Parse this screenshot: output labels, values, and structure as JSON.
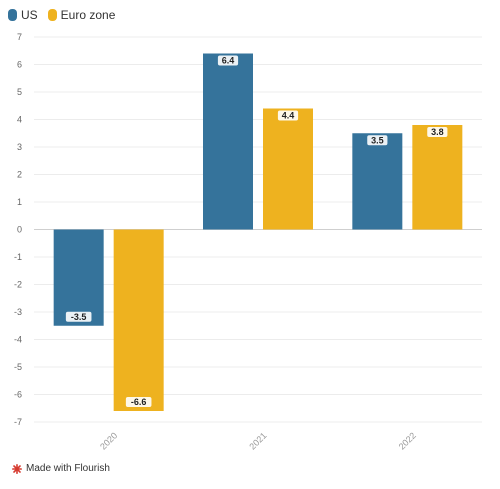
{
  "legend": [
    {
      "name": "US",
      "color": "#35739b"
    },
    {
      "name": "Euro zone",
      "color": "#eeb21f"
    }
  ],
  "footer": {
    "label": "Made with Flourish",
    "icon": "flourish-logo-icon",
    "icon_color": "#d63a2f"
  },
  "chart_data": {
    "type": "bar",
    "categories": [
      "2020",
      "2021",
      "2022"
    ],
    "series": [
      {
        "name": "US",
        "color": "#35739b",
        "values": [
          -3.5,
          6.4,
          3.5
        ],
        "labels": [
          "-3.5",
          "6.4",
          "3.5"
        ]
      },
      {
        "name": "Euro zone",
        "color": "#eeb21f",
        "values": [
          -6.6,
          4.4,
          3.8
        ],
        "labels": [
          "-6.6",
          "4.4",
          "3.8"
        ]
      }
    ],
    "yticks": [
      "7",
      "6",
      "5",
      "4",
      "3",
      "2",
      "1",
      "0",
      "-1",
      "-2",
      "-3",
      "-4",
      "-5",
      "-6",
      "-7"
    ],
    "ylim": [
      -7,
      7
    ],
    "grid": true,
    "legend_position": "top-left",
    "title": "",
    "xlabel": "",
    "ylabel": ""
  }
}
